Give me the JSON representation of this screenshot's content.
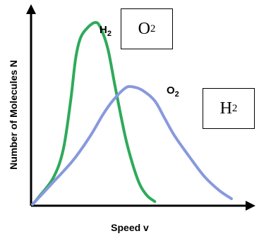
{
  "chart_data": {
    "type": "line",
    "xlabel": "Speed v",
    "ylabel": "Number of Molecules N",
    "series": [
      {
        "name": "H2",
        "color": "#2eaa5a",
        "points": [
          [
            0.6,
            2
          ],
          [
            3,
            12
          ],
          [
            9,
            40
          ],
          [
            13,
            80
          ],
          [
            16,
            150
          ],
          [
            18,
            210
          ],
          [
            20,
            240
          ],
          [
            23,
            255
          ],
          [
            26,
            262
          ],
          [
            28,
            255
          ],
          [
            31,
            225
          ],
          [
            34,
            170
          ],
          [
            38,
            100
          ],
          [
            41,
            60
          ],
          [
            44,
            30
          ],
          [
            47,
            14
          ],
          [
            50,
            6
          ]
        ]
      },
      {
        "name": "O2",
        "color": "#8899dd",
        "points": [
          [
            0.6,
            2
          ],
          [
            8,
            30
          ],
          [
            17,
            65
          ],
          [
            24,
            100
          ],
          [
            29,
            130
          ],
          [
            33,
            150
          ],
          [
            38,
            168
          ],
          [
            41,
            170
          ],
          [
            45,
            165
          ],
          [
            50,
            150
          ],
          [
            54,
            125
          ],
          [
            58,
            100
          ],
          [
            64,
            70
          ],
          [
            70,
            42
          ],
          [
            76,
            22
          ],
          [
            81,
            10
          ]
        ]
      }
    ],
    "xlim": [
      0,
      85
    ],
    "ylim": [
      0,
      280
    ],
    "boxes": [
      {
        "letter": "O",
        "sub": "2"
      },
      {
        "letter": "H",
        "sub": "2"
      }
    ]
  }
}
